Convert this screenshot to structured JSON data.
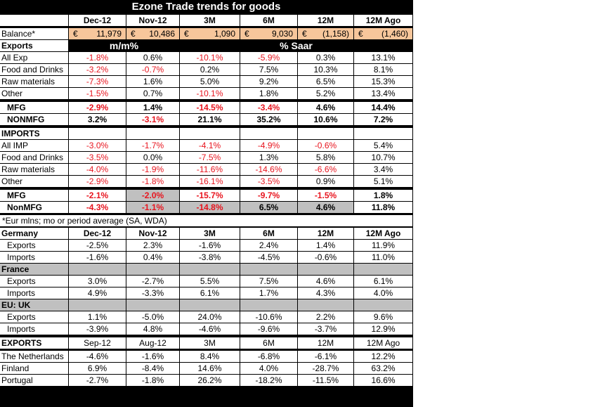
{
  "title": "Ezone Trade trends for goods",
  "headers": [
    "Dec-12",
    "Nov-12",
    "3M",
    "6M",
    "12M",
    "12M Ago"
  ],
  "balance": {
    "label": "Balance*",
    "currency": "€",
    "values": [
      "11,979",
      "10,486",
      "1,090",
      "9,030",
      "(1,158)",
      "(1,460)"
    ]
  },
  "exports_section": {
    "label": "Exports",
    "mm": "m/m%",
    "saar": "% Saar"
  },
  "exports_rows": [
    {
      "label": "All Exp",
      "values": [
        "-1.8%",
        "0.6%",
        "-10.1%",
        "-5.9%",
        "0.3%",
        "13.1%"
      ],
      "neg": [
        1,
        0,
        1,
        1,
        0,
        0
      ]
    },
    {
      "label": "Food and Drinks",
      "values": [
        "-3.2%",
        "-0.7%",
        "0.2%",
        "7.5%",
        "10.3%",
        "8.1%"
      ],
      "neg": [
        1,
        1,
        0,
        0,
        0,
        0
      ]
    },
    {
      "label": "Raw materials",
      "values": [
        "-7.3%",
        "1.6%",
        "5.0%",
        "9.2%",
        "6.5%",
        "15.3%"
      ],
      "neg": [
        1,
        0,
        0,
        0,
        0,
        0
      ]
    },
    {
      "label": "Other",
      "values": [
        "-1.5%",
        "0.7%",
        "-10.1%",
        "1.8%",
        "5.2%",
        "13.4%"
      ],
      "neg": [
        1,
        0,
        1,
        0,
        0,
        0
      ]
    }
  ],
  "exports_mfg": [
    {
      "label": "MFG",
      "values": [
        "-2.9%",
        "1.4%",
        "-14.5%",
        "-3.4%",
        "4.6%",
        "14.4%"
      ],
      "neg": [
        1,
        0,
        1,
        1,
        0,
        0
      ]
    },
    {
      "label": "NONMFG",
      "values": [
        "3.2%",
        "-3.1%",
        "21.1%",
        "35.2%",
        "10.6%",
        "7.2%"
      ],
      "neg": [
        0,
        1,
        0,
        0,
        0,
        0
      ]
    }
  ],
  "imports_label": "IMPORTS",
  "imports_rows": [
    {
      "label": "All IMP",
      "values": [
        "-3.0%",
        "-1.7%",
        "-4.1%",
        "-4.9%",
        "-0.6%",
        "5.4%"
      ],
      "neg": [
        1,
        1,
        1,
        1,
        1,
        0
      ]
    },
    {
      "label": "Food and Drinks",
      "values": [
        "-3.5%",
        "0.0%",
        "-7.5%",
        "1.3%",
        "5.8%",
        "10.7%"
      ],
      "neg": [
        1,
        0,
        1,
        0,
        0,
        0
      ]
    },
    {
      "label": "Raw materials",
      "values": [
        "-4.0%",
        "-1.9%",
        "-11.6%",
        "-14.6%",
        "-6.6%",
        "3.4%"
      ],
      "neg": [
        1,
        1,
        1,
        1,
        1,
        0
      ]
    },
    {
      "label": "Other",
      "values": [
        "-2.9%",
        "-1.8%",
        "-16.1%",
        "-3.5%",
        "0.9%",
        "5.1%"
      ],
      "neg": [
        1,
        1,
        1,
        1,
        0,
        0
      ]
    }
  ],
  "imports_mfg": [
    {
      "label": "MFG",
      "values": [
        "-2.1%",
        "-2.0%",
        "-15.7%",
        "-9.7%",
        "-1.5%",
        "1.8%"
      ],
      "neg": [
        1,
        1,
        1,
        1,
        1,
        0
      ],
      "grey": [
        0,
        1,
        0,
        0,
        0,
        0
      ]
    },
    {
      "label": "NonMFG",
      "values": [
        "-4.3%",
        "-1.1%",
        "-14.8%",
        "6.5%",
        "4.6%",
        "11.8%"
      ],
      "neg": [
        1,
        1,
        1,
        0,
        0,
        0
      ],
      "grey": [
        0,
        1,
        1,
        1,
        1,
        0
      ]
    }
  ],
  "note": "*Eur mlns; mo or period average (SA, WDA)",
  "germany": {
    "label": "Germany",
    "rows": [
      {
        "label": "Exports",
        "values": [
          "-2.5%",
          "2.3%",
          "-1.6%",
          "2.4%",
          "1.4%",
          "11.9%"
        ]
      },
      {
        "label": "Imports",
        "values": [
          "-1.6%",
          "0.4%",
          "-3.8%",
          "-4.5%",
          "-0.6%",
          "11.0%"
        ]
      }
    ]
  },
  "france": {
    "label": "France",
    "rows": [
      {
        "label": "Exports",
        "values": [
          "3.0%",
          "-2.7%",
          "5.5%",
          "7.5%",
          "4.6%",
          "6.1%"
        ]
      },
      {
        "label": "Imports",
        "values": [
          "4.9%",
          "-3.3%",
          "6.1%",
          "1.7%",
          "4.3%",
          "4.0%"
        ]
      }
    ]
  },
  "uk": {
    "label": "EU: UK",
    "rows": [
      {
        "label": "Exports",
        "values": [
          "1.1%",
          "-5.0%",
          "24.0%",
          "-10.6%",
          "2.2%",
          "9.6%"
        ]
      },
      {
        "label": "Imports",
        "values": [
          "-3.9%",
          "4.8%",
          "-4.6%",
          "-9.6%",
          "-3.7%",
          "12.9%"
        ]
      }
    ]
  },
  "exports2": {
    "label": "EXPORTS",
    "headers": [
      "Sep-12",
      "Aug-12",
      "3M",
      "6M",
      "12M",
      "12M Ago"
    ],
    "rows": [
      {
        "label": "The Netherlands",
        "values": [
          "-4.6%",
          "-1.6%",
          "8.4%",
          "-6.8%",
          "-6.1%",
          "12.2%"
        ]
      },
      {
        "label": "Finland",
        "values": [
          "6.9%",
          "-8.4%",
          "14.6%",
          "4.0%",
          "-28.7%",
          "63.2%"
        ]
      },
      {
        "label": "Portugal",
        "values": [
          "-2.7%",
          "-1.8%",
          "26.2%",
          "-18.2%",
          "-11.5%",
          "16.6%"
        ]
      }
    ]
  }
}
